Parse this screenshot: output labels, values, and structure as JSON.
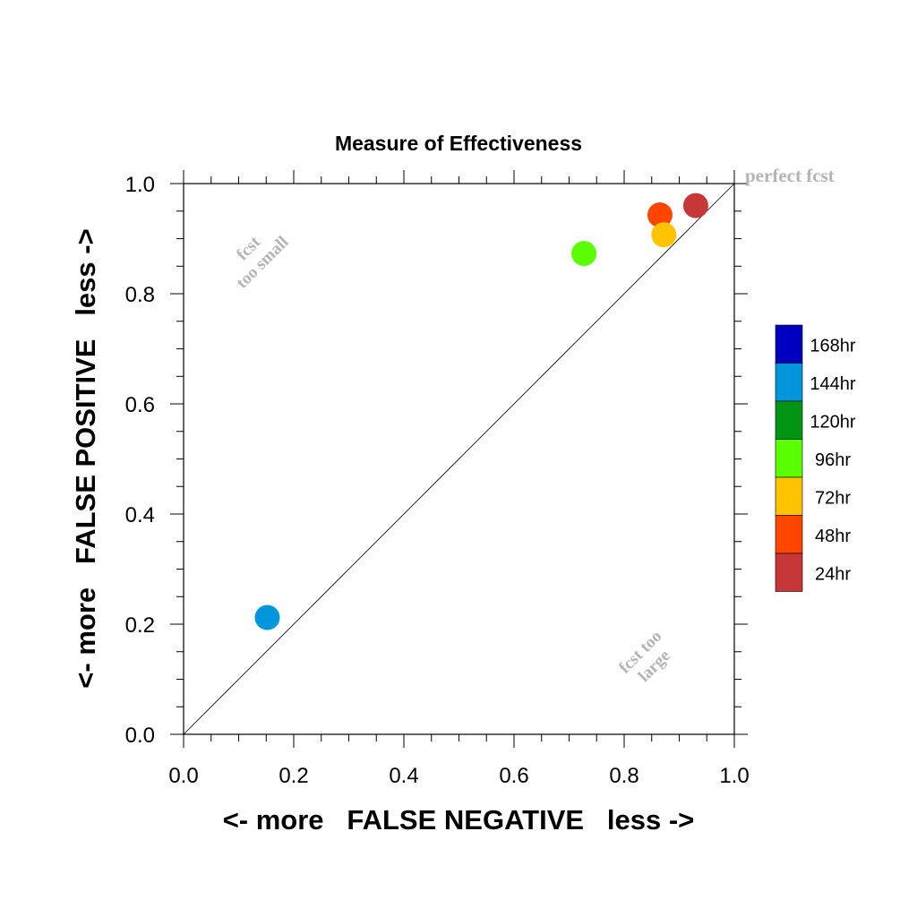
{
  "chart_data": {
    "type": "scatter",
    "title": "Measure of Effectiveness",
    "xlabel": "<- more   FALSE NEGATIVE   less ->",
    "ylabel": "<- more   FALSE POSITIVE   less ->",
    "xlim": [
      0.0,
      1.0
    ],
    "ylim": [
      0.0,
      1.0
    ],
    "x_ticks": [
      "0.0",
      "0.2",
      "0.4",
      "0.6",
      "0.8",
      "1.0"
    ],
    "y_ticks": [
      "0.0",
      "0.2",
      "0.4",
      "0.6",
      "0.8",
      "1.0"
    ],
    "grid": false,
    "diagonal_line": true,
    "annotations": {
      "perfect": "perfect fcst",
      "too_small_1": "fcst",
      "too_small_2": "too small",
      "too_large_1": "fcst too",
      "too_large_2": "large"
    },
    "legend": {
      "placement": "right",
      "entries": [
        {
          "label": "168hr",
          "color": "#0000c0"
        },
        {
          "label": "144hr",
          "color": "#0096dc"
        },
        {
          "label": "120hr",
          "color": "#009614"
        },
        {
          "label": "96hr",
          "color": "#5aff00"
        },
        {
          "label": "72hr",
          "color": "#ffc300"
        },
        {
          "label": "48hr",
          "color": "#ff4600"
        },
        {
          "label": "24hr",
          "color": "#c83737"
        }
      ]
    },
    "series": [
      {
        "lead": "24hr",
        "x": 0.93,
        "y": 0.96,
        "color": "#c83737"
      },
      {
        "lead": "48hr",
        "x": 0.865,
        "y": 0.943,
        "color": "#ff4600"
      },
      {
        "lead": "72hr",
        "x": 0.872,
        "y": 0.907,
        "color": "#ffc300"
      },
      {
        "lead": "96hr",
        "x": 0.727,
        "y": 0.873,
        "color": "#5aff00"
      },
      {
        "lead": "144hr",
        "x": 0.152,
        "y": 0.212,
        "color": "#0096dc"
      }
    ]
  }
}
